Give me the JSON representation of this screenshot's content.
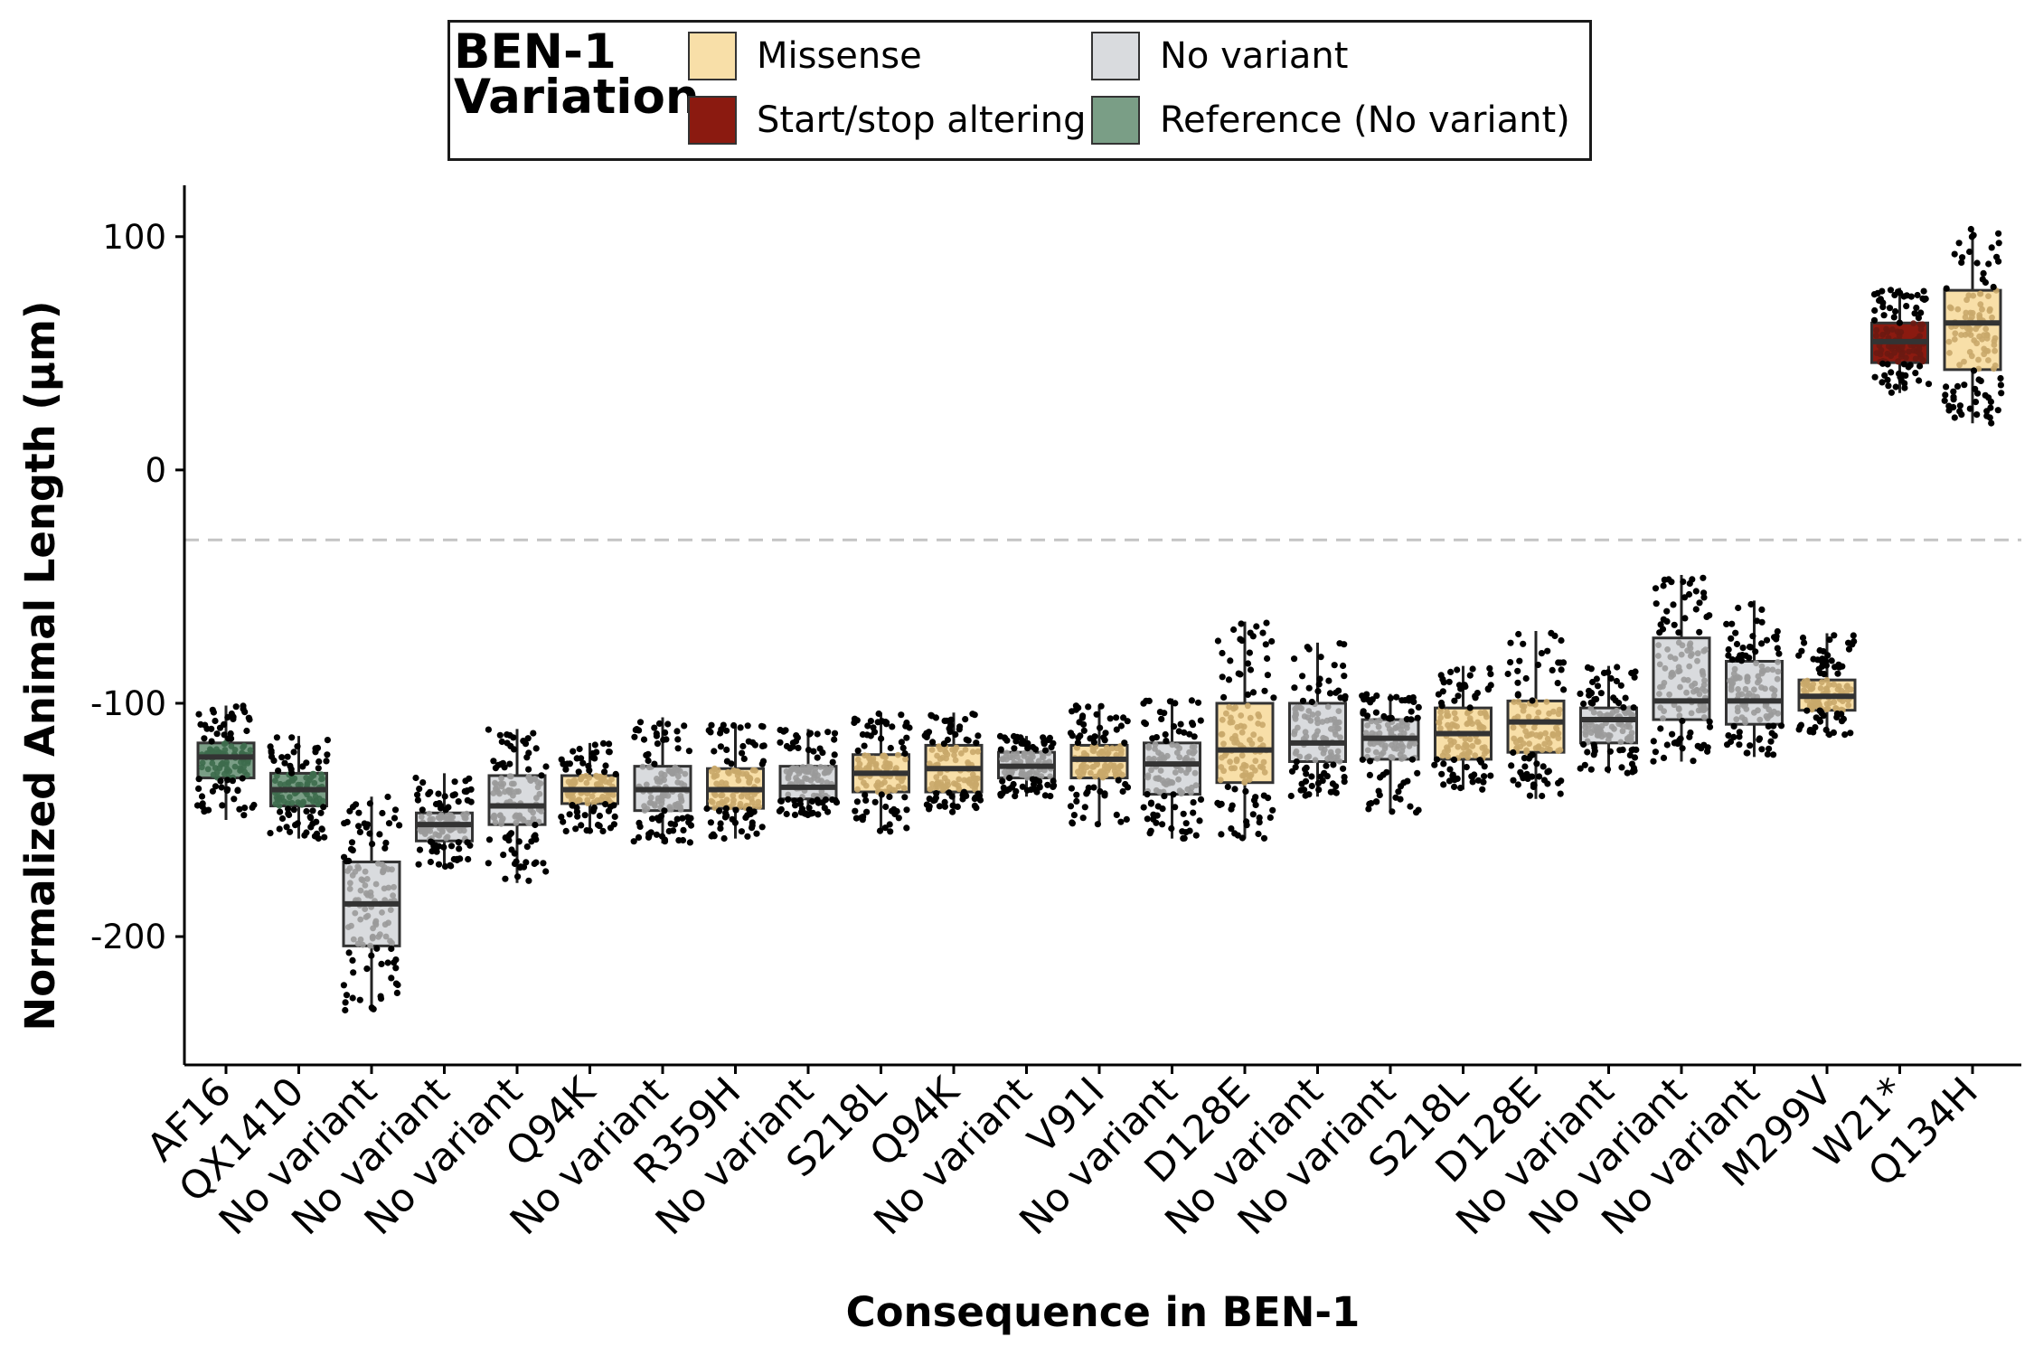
{
  "chart_data": {
    "type": "boxplot",
    "title": "",
    "xlabel": "Consequence in BEN-1",
    "ylabel": "Normalized Animal Length (µm)",
    "ylim": [
      -255,
      122
    ],
    "yticks": [
      100,
      0,
      -100,
      -200
    ],
    "reference_line": -30,
    "legend": {
      "title_line1": "BEN-1",
      "title_line2": "Variation",
      "placement": "top",
      "entries": [
        {
          "key": "missense",
          "label": "Missense",
          "color": "#f8dfa8"
        },
        {
          "key": "start_stop",
          "label": "Start/stop altering",
          "color": "#8b1a10"
        },
        {
          "key": "no_variant",
          "label": "No variant",
          "color": "#d9dbde"
        },
        {
          "key": "reference",
          "label": "Reference (No variant)",
          "color": "#7a9e86"
        }
      ]
    },
    "categories": [
      "AF16",
      "QX1410",
      "No variant",
      "No variant",
      "No variant",
      "Q94K",
      "No variant",
      "R359H",
      "No variant",
      "S218L",
      "Q94K",
      "No variant",
      "V91I",
      "No variant",
      "D128E",
      "No variant",
      "No variant",
      "S218L",
      "D128E",
      "No variant",
      "No variant",
      "No variant",
      "M299V",
      "W21*",
      "Q134H"
    ],
    "boxes": [
      {
        "type": "reference",
        "whisker_low": -150,
        "q1": -132,
        "median": -123,
        "q3": -117,
        "whisker_high": -101
      },
      {
        "type": "reference",
        "whisker_low": -158,
        "q1": -144,
        "median": -137,
        "q3": -130,
        "whisker_high": -114
      },
      {
        "type": "no_variant",
        "whisker_low": -232,
        "q1": -204,
        "median": -186,
        "q3": -168,
        "whisker_high": -140
      },
      {
        "type": "no_variant",
        "whisker_low": -170,
        "q1": -159,
        "median": -152,
        "q3": -147,
        "whisker_high": -130
      },
      {
        "type": "no_variant",
        "whisker_low": -177,
        "q1": -152,
        "median": -144,
        "q3": -131,
        "whisker_high": -111
      },
      {
        "type": "missense",
        "whisker_low": -155,
        "q1": -143,
        "median": -137,
        "q3": -131,
        "whisker_high": -117
      },
      {
        "type": "no_variant",
        "whisker_low": -160,
        "q1": -146,
        "median": -137,
        "q3": -127,
        "whisker_high": -106
      },
      {
        "type": "missense",
        "whisker_low": -158,
        "q1": -145,
        "median": -137,
        "q3": -128,
        "whisker_high": -109
      },
      {
        "type": "no_variant",
        "whisker_low": -148,
        "q1": -141,
        "median": -136,
        "q3": -127,
        "whisker_high": -111
      },
      {
        "type": "missense",
        "whisker_low": -155,
        "q1": -138,
        "median": -130,
        "q3": -122,
        "whisker_high": -104
      },
      {
        "type": "missense",
        "whisker_low": -147,
        "q1": -138,
        "median": -128,
        "q3": -118,
        "whisker_high": -104
      },
      {
        "type": "no_variant",
        "whisker_low": -140,
        "q1": -132,
        "median": -127,
        "q3": -121,
        "whisker_high": -114
      },
      {
        "type": "missense",
        "whisker_low": -152,
        "q1": -132,
        "median": -124,
        "q3": -118,
        "whisker_high": -101
      },
      {
        "type": "no_variant",
        "whisker_low": -158,
        "q1": -139,
        "median": -126,
        "q3": -117,
        "whisker_high": -98
      },
      {
        "type": "missense",
        "whisker_low": -158,
        "q1": -134,
        "median": -120,
        "q3": -100,
        "whisker_high": -65
      },
      {
        "type": "no_variant",
        "whisker_low": -140,
        "q1": -125,
        "median": -117,
        "q3": -100,
        "whisker_high": -74
      },
      {
        "type": "no_variant",
        "whisker_low": -147,
        "q1": -124,
        "median": -115,
        "q3": -107,
        "whisker_high": -96
      },
      {
        "type": "missense",
        "whisker_low": -137,
        "q1": -124,
        "median": -113,
        "q3": -102,
        "whisker_high": -84
      },
      {
        "type": "missense",
        "whisker_low": -141,
        "q1": -121,
        "median": -108,
        "q3": -99,
        "whisker_high": -69
      },
      {
        "type": "no_variant",
        "whisker_low": -130,
        "q1": -117,
        "median": -107,
        "q3": -102,
        "whisker_high": -84
      },
      {
        "type": "no_variant",
        "whisker_low": -125,
        "q1": -107,
        "median": -99,
        "q3": -72,
        "whisker_high": -45
      },
      {
        "type": "no_variant",
        "whisker_low": -123,
        "q1": -109,
        "median": -99,
        "q3": -82,
        "whisker_high": -56
      },
      {
        "type": "missense",
        "whisker_low": -114,
        "q1": -103,
        "median": -97,
        "q3": -90,
        "whisker_high": -70
      },
      {
        "type": "start_stop",
        "whisker_low": 33,
        "q1": 46,
        "median": 55,
        "q3": 63,
        "whisker_high": 78
      },
      {
        "type": "missense",
        "whisker_low": 20,
        "q1": 43,
        "median": 63,
        "q3": 77,
        "whisker_high": 104
      }
    ]
  }
}
